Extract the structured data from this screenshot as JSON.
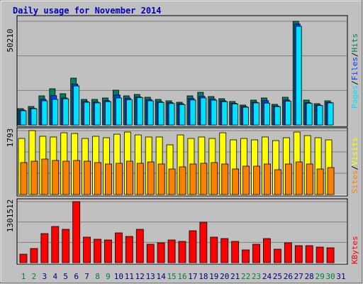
{
  "chart_data": {
    "type": "bar",
    "title": "Daily usage for November 2014",
    "categories": [
      "1",
      "2",
      "3",
      "4",
      "5",
      "6",
      "7",
      "8",
      "9",
      "10",
      "11",
      "12",
      "13",
      "14",
      "15",
      "16",
      "17",
      "18",
      "19",
      "20",
      "21",
      "22",
      "23",
      "24",
      "25",
      "26",
      "27",
      "28",
      "29",
      "30",
      "31"
    ],
    "category_colors": [
      "#008040",
      "#008040",
      "#000080",
      "#000080",
      "#000080",
      "#000080",
      "#000080",
      "#008040",
      "#008040",
      "#000080",
      "#000080",
      "#000080",
      "#000080",
      "#000080",
      "#008040",
      "#008040",
      "#000080",
      "#000080",
      "#000080",
      "#000080",
      "#000080",
      "#008040",
      "#008040",
      "#000080",
      "#000080",
      "#000080",
      "#000080",
      "#000080",
      "#008040",
      "#008040",
      "#000080"
    ],
    "legend_separator": "/",
    "panels": [
      {
        "ylim": [
          0,
          50210
        ],
        "yticks": [
          50210
        ],
        "series": [
          {
            "name": "Hits",
            "color": "#00805c",
            "values": [
              7910,
              8941,
              14100,
              17539,
              15132,
              22698,
              12380,
              12380,
              13068,
              16851,
              14100,
              14788,
              13412,
              12380,
              11693,
              11005,
              14100,
              15819,
              13756,
              12724,
              11349,
              9629,
              12037,
              13068,
              9973,
              13412,
              50210,
              12037,
              10317,
              11693,
              null
            ]
          },
          {
            "name": "Files",
            "color": "#0040ff",
            "values": [
              7200,
              8100,
              12400,
              14200,
              13100,
              19800,
              11400,
              11100,
              11800,
              14500,
              13000,
              13600,
              12300,
              11300,
              10800,
              10300,
              12800,
              13900,
              12600,
              11700,
              10500,
              8900,
              11000,
              11800,
              9200,
              12100,
              48900,
              10800,
              9600,
              10900,
              null
            ]
          },
          {
            "name": "Pages",
            "color": "#00e0ff",
            "values": [
              6900,
              7900,
              11700,
              12400,
              12700,
              18900,
              11000,
              10700,
              11300,
              13100,
              12200,
              13300,
              11700,
              10900,
              10400,
              9900,
              12100,
              13100,
              12000,
              11300,
              10200,
              8600,
              10700,
              10600,
              8900,
              11500,
              47800,
              10500,
              9400,
              10700,
              null
            ]
          }
        ]
      },
      {
        "ylim": [
          0,
          1793
        ],
        "yticks": [
          1793
        ],
        "series": [
          {
            "name": "Visits",
            "color": "#ffff00",
            "values": [
              1574,
              1793,
              1634,
              1614,
              1733,
              1713,
              1574,
              1634,
              1594,
              1693,
              1753,
              1673,
              1614,
              1614,
              1395,
              1673,
              1574,
              1614,
              1574,
              1733,
              1534,
              1574,
              1534,
              1614,
              1514,
              1594,
              1753,
              1654,
              1594,
              1534,
              null
            ]
          },
          {
            "name": "Sites",
            "color": "#ff8000",
            "values": [
              897,
              936,
              996,
              956,
              936,
              956,
              936,
              897,
              857,
              877,
              936,
              877,
              916,
              857,
              717,
              777,
              857,
              877,
              897,
              857,
              717,
              797,
              797,
              857,
              697,
              857,
              916,
              857,
              717,
              757,
              null
            ]
          }
        ]
      },
      {
        "ylim": [
          0,
          1301512
        ],
        "yticks": [
          1301512
        ],
        "series": [
          {
            "name": "KBytes",
            "color": "#ff0000",
            "values": [
              181606,
              302677,
              620511,
              771861,
              711321,
              1301512,
              544837,
              499431,
              484296,
              635647,
              559973,
              711321,
              393487,
              423756,
              484296,
              454026,
              681052,
              862670,
              544837,
              514567,
              454026,
              272407,
              393487,
              514567,
              287542,
              423756,
              363216,
              363216,
              332946,
              317811,
              null
            ]
          }
        ]
      }
    ]
  }
}
